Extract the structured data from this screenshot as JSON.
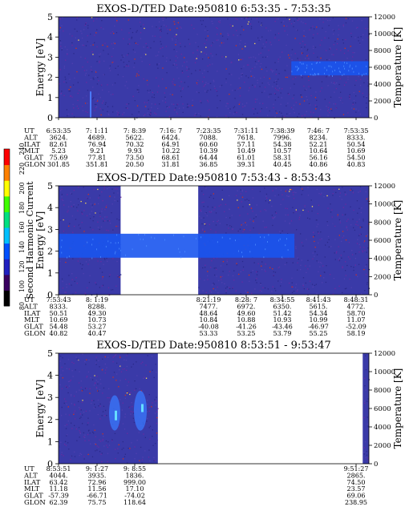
{
  "chart_data": [
    {
      "type": "heatmap",
      "title": "EXOS-D/TED   Date:950810  6:53:35 - 7:53:35",
      "ylabel": "Energy [eV]",
      "ylim": [
        0,
        5
      ],
      "yticks": [
        "0",
        "1",
        "2",
        "3",
        "4",
        "5"
      ],
      "y2label": "Temperature [K]",
      "y2lim": [
        0,
        12000
      ],
      "y2ticks": [
        "0",
        "2000",
        "4000",
        "6000",
        "8000",
        "10000",
        "12000"
      ],
      "coverage": [
        [
          0,
          1
        ]
      ],
      "enhanced_band": {
        "start": 0.75,
        "end": 1.0,
        "energy": [
          2.1,
          2.8
        ]
      },
      "rows": [
        {
          "name": "UT",
          "values": [
            "6:53:35",
            "7: 1:11",
            "7: 8:39",
            "7:16: 7",
            "7:23:35",
            "7:31:11",
            "7:38:39",
            "7:46: 7",
            "7:53:35"
          ]
        },
        {
          "name": "ALT",
          "values": [
            "3624.",
            "4689.",
            "5622.",
            "6424.",
            "7088.",
            "7618.",
            "7996.",
            "8234.",
            "8333."
          ]
        },
        {
          "name": "ILAT",
          "values": [
            "82.61",
            "76.94",
            "70.32",
            "64.91",
            "60.60",
            "57.11",
            "54.38",
            "52.21",
            "50.54"
          ]
        },
        {
          "name": "MLT",
          "values": [
            "5.23",
            "9.21",
            "9.93",
            "10.22",
            "10.39",
            "10.49",
            "10.57",
            "10.64",
            "10.69"
          ]
        },
        {
          "name": "GLAT",
          "values": [
            "75.69",
            "77.81",
            "73.50",
            "68.61",
            "64.44",
            "61.01",
            "58.31",
            "56.16",
            "54.50"
          ]
        },
        {
          "name": "GLON",
          "values": [
            "301.85",
            "351.81",
            "20.50",
            "31.81",
            "36.85",
            "39.31",
            "40.45",
            "40.86",
            "40.83"
          ]
        }
      ]
    },
    {
      "type": "heatmap",
      "title": "EXOS-D/TED   Date:950810  7:53:43 - 8:53:43",
      "ylabel": "Energy [eV]",
      "ylim": [
        0,
        5
      ],
      "yticks": [
        "0",
        "1",
        "2",
        "3",
        "4",
        "5"
      ],
      "y2label": "Temperature [K]",
      "y2lim": [
        0,
        12000
      ],
      "y2ticks": [
        "0",
        "2000",
        "4000",
        "6000",
        "8000",
        "10000",
        "12000"
      ],
      "coverage": [
        [
          0,
          0.2
        ],
        [
          0.45,
          1
        ]
      ],
      "enhanced_band": {
        "start": 0,
        "end": 0.76,
        "energy": [
          1.7,
          2.8
        ]
      },
      "rows": [
        {
          "name": "UT",
          "values": [
            "7:53:43",
            "8: 1:19",
            "",
            "",
            "8:21:19",
            "8:28: 7",
            "8:34:55",
            "8:41:43",
            "8:48:31"
          ]
        },
        {
          "name": "ALT",
          "values": [
            "8333.",
            "8288.",
            "",
            "",
            "7477.",
            "6972.",
            "6350.",
            "5615.",
            "4772."
          ]
        },
        {
          "name": "ILAT",
          "values": [
            "50.51",
            "49.30",
            "",
            "",
            "48.64",
            "49.60",
            "51.42",
            "54.34",
            "58.70"
          ]
        },
        {
          "name": "MLT",
          "values": [
            "10.69",
            "10.73",
            "",
            "",
            "10.84",
            "10.88",
            "10.93",
            "10.99",
            "11.07"
          ]
        },
        {
          "name": "GLAT",
          "values": [
            "54.48",
            "53.27",
            "",
            "",
            "-40.08",
            "-41.26",
            "-43.46",
            "-46.97",
            "-52.09"
          ]
        },
        {
          "name": "GLON",
          "values": [
            "40.82",
            "40.47",
            "",
            "",
            "53.33",
            "53.25",
            "53.79",
            "55.25",
            "58.19"
          ]
        }
      ]
    },
    {
      "type": "heatmap",
      "title": "EXOS-D/TED   Date:950810  8:53:51 - 9:53:47",
      "ylabel": "Energy [eV]",
      "ylim": [
        0,
        5
      ],
      "yticks": [
        "0",
        "1",
        "2",
        "3",
        "4",
        "5"
      ],
      "y2label": "Temperature [K]",
      "y2lim": [
        0,
        12000
      ],
      "y2ticks": [
        "0",
        "2000",
        "4000",
        "6000",
        "8000",
        "10000",
        "12000"
      ],
      "coverage": [
        [
          0,
          0.32
        ],
        [
          0.98,
          1
        ]
      ],
      "enhanced_band": null,
      "rows": [
        {
          "name": "UT",
          "values": [
            "8:53:51",
            "9: 1:27",
            "9: 8:55",
            "",
            "",
            "",
            "",
            "",
            "9:51:27"
          ]
        },
        {
          "name": "ALT",
          "values": [
            "4044.",
            "3935.",
            "1836.",
            "",
            "",
            "",
            "",
            "",
            "2865."
          ]
        },
        {
          "name": "ILAT",
          "values": [
            "63.42",
            "72.96",
            "999.00",
            "",
            "",
            "",
            "",
            "",
            "74.50"
          ]
        },
        {
          "name": "MLT",
          "values": [
            "11.18",
            "11.56",
            "17.10",
            "",
            "",
            "",
            "",
            "",
            "23.57"
          ]
        },
        {
          "name": "GLAT",
          "values": [
            "-57.39",
            "-66.71",
            "-74.02",
            "",
            "",
            "",
            "",
            "",
            "69.06"
          ]
        },
        {
          "name": "GLON",
          "values": [
            "62.39",
            "75.75",
            "118.64",
            "",
            "",
            "",
            "",
            "",
            "238.95"
          ]
        }
      ]
    }
  ],
  "colorbar": {
    "label": "Second Harmonic Current",
    "ticks": [
      "80",
      "100",
      "120",
      "140",
      "160",
      "180",
      "200",
      "220",
      "240"
    ],
    "colors": [
      "#000000",
      "#3a0060",
      "#2020c0",
      "#0050ff",
      "#00c0ff",
      "#00e080",
      "#40ff00",
      "#ffff00",
      "#ff8000",
      "#ff0000"
    ]
  },
  "style": {
    "background_color": "#3a3aa8",
    "band_color": "#1a55ee",
    "noise_colors": [
      "#6a2aa0",
      "#cc3322",
      "#ffdd55",
      "#2a2a8a",
      "#5040b0"
    ]
  }
}
